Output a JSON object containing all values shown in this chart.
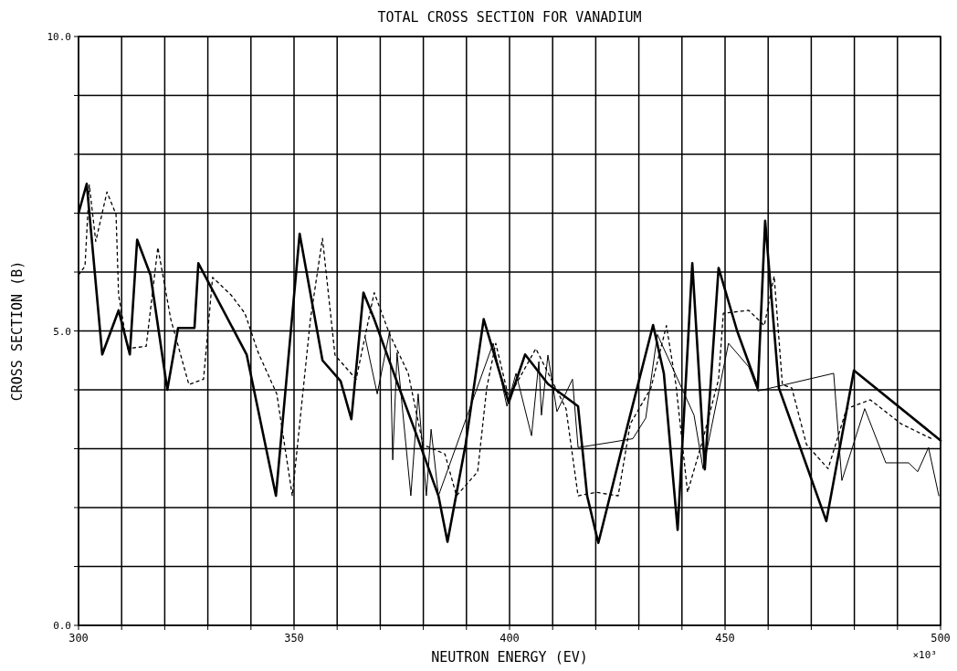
{
  "chart_data": {
    "type": "line",
    "title": "TOTAL CROSS SECTION FOR VANADIUM",
    "xlabel": "NEUTRON ENERGY (EV)",
    "ylabel": "CROSS SECTION (B)",
    "annotations": [
      "×10³"
    ],
    "xlim": [
      300,
      500
    ],
    "ylim": [
      0,
      10
    ],
    "xticks": [
      {
        "value": 300,
        "label": "300"
      },
      {
        "value": 310,
        "label": null
      },
      {
        "value": 320,
        "label": null
      },
      {
        "value": 330,
        "label": null
      },
      {
        "value": 340,
        "label": null
      },
      {
        "value": 350,
        "label": "350"
      },
      {
        "value": 360,
        "label": null
      },
      {
        "value": 370,
        "label": null
      },
      {
        "value": 380,
        "label": null
      },
      {
        "value": 390,
        "label": null
      },
      {
        "value": 400,
        "label": "400"
      },
      {
        "value": 410,
        "label": null
      },
      {
        "value": 420,
        "label": null
      },
      {
        "value": 430,
        "label": null
      },
      {
        "value": 440,
        "label": null
      },
      {
        "value": 450,
        "label": "450"
      },
      {
        "value": 460,
        "label": null
      },
      {
        "value": 470,
        "label": null
      },
      {
        "value": 480,
        "label": null
      },
      {
        "value": 490,
        "label": null
      },
      {
        "value": 500,
        "label": "500"
      }
    ],
    "yticks": [
      {
        "value": 0,
        "label": "0.0"
      },
      {
        "value": 1,
        "label": null
      },
      {
        "value": 2,
        "label": null
      },
      {
        "value": 3,
        "label": null
      },
      {
        "value": 4,
        "label": null
      },
      {
        "value": 5,
        "label": "5.0"
      },
      {
        "value": 6,
        "label": null
      },
      {
        "value": 7,
        "label": null
      },
      {
        "value": 8,
        "label": null
      },
      {
        "value": 9,
        "label": null
      },
      {
        "value": 10,
        "label": "10.0"
      }
    ],
    "grid": true,
    "series": [
      {
        "color": "#000000",
        "line_style": "solid",
        "x": [
          300,
          301.9,
          305.5,
          309.3,
          311.9,
          313.6,
          316.7,
          320.6,
          323.1,
          326.9,
          327.8,
          339,
          345.8,
          351.3,
          356.6,
          360.8,
          363.3,
          366.1,
          368.6,
          374.4,
          378.6,
          383.5,
          385.6,
          389.8,
          394,
          399.8,
          403.6,
          408.9,
          415.9,
          418,
          420.6,
          427.3,
          433.3,
          435.8,
          439,
          442.4,
          445.3,
          448.5,
          452.8,
          457.6,
          459.3,
          462.5,
          466.7,
          473.5,
          479.9,
          500
        ],
        "values": [
          7.0,
          7.5,
          4.6,
          5.35,
          4.6,
          6.55,
          5.95,
          4.0,
          5.05,
          5.05,
          6.15,
          4.6,
          2.2,
          6.65,
          4.5,
          4.15,
          3.5,
          5.65,
          5.2,
          4.03,
          3.2,
          2.2,
          1.42,
          3.07,
          5.2,
          3.78,
          4.6,
          4.1,
          3.72,
          2.2,
          1.4,
          3.37,
          5.1,
          4.28,
          1.62,
          6.15,
          2.65,
          6.07,
          5.0,
          4.03,
          6.87,
          4.03,
          3.17,
          1.77,
          4.33,
          3.14
        ]
      },
      {
        "color": "#000000",
        "line_style": "solid",
        "x": [
          366.5,
          369.3,
          372.2,
          372.9,
          373.9,
          377.1,
          378.8,
          380.7,
          381.8,
          383.5,
          396.2,
          399.4,
          401.5,
          405.1,
          406.8,
          407.4,
          408.9,
          411,
          414.6,
          415.9,
          423.7,
          428.6,
          431.6,
          434.3,
          442.8,
          444.9,
          450.8,
          455.5,
          457.6,
          475.2,
          477.1,
          482.4,
          487.3,
          492.6,
          494.7,
          497.2,
          499.6
        ],
        "values": [
          4.89,
          3.93,
          5.0,
          2.81,
          4.63,
          2.2,
          3.93,
          2.2,
          3.33,
          2.2,
          4.79,
          3.72,
          4.28,
          3.22,
          4.48,
          3.57,
          4.59,
          3.63,
          4.18,
          3.02,
          3.11,
          3.17,
          3.52,
          4.94,
          3.57,
          2.66,
          4.79,
          4.39,
          3.98,
          4.28,
          2.46,
          3.68,
          2.76,
          2.76,
          2.61,
          3.02,
          2.2
        ]
      },
      {
        "color": "#000000",
        "line_style": "dotted",
        "x": [
          300,
          301.5,
          302.5,
          304,
          306.6,
          308.7,
          309.3,
          311.4,
          315.7,
          318.4,
          321.4,
          325.6,
          329,
          331.1,
          335.4,
          338.6,
          341.7,
          346,
          349.6,
          353.8,
          356.6,
          359.5,
          364.4,
          368.6,
          372.2,
          376.5,
          379.9,
          385,
          387.7,
          392.6,
          394.7,
          396.8,
          399.8,
          406.1,
          413.1,
          415.9,
          420.1,
          425.2,
          428,
          432.8,
          436.4,
          438.6,
          441.3,
          444.9,
          448.5,
          449.6,
          455.5,
          459.1,
          461.4,
          463.3,
          465.5,
          468.9,
          473.9,
          478.2,
          483.7,
          490.9,
          497.9
        ],
        "values": [
          5.95,
          6.1,
          7.48,
          6.52,
          7.36,
          6.98,
          5.61,
          4.7,
          4.74,
          6.42,
          5.2,
          4.09,
          4.18,
          5.91,
          5.61,
          5.3,
          4.63,
          3.93,
          2.2,
          5.2,
          6.57,
          4.59,
          4.18,
          5.65,
          4.94,
          4.28,
          3.07,
          2.91,
          2.2,
          2.61,
          4.03,
          4.79,
          3.87,
          4.7,
          3.68,
          2.2,
          2.26,
          2.2,
          3.42,
          4.03,
          5.09,
          4.09,
          2.26,
          3.17,
          4.18,
          5.3,
          5.35,
          5.09,
          5.93,
          4.09,
          4.03,
          3.07,
          2.66,
          3.68,
          3.83,
          3.42,
          3.17
        ]
      }
    ]
  }
}
